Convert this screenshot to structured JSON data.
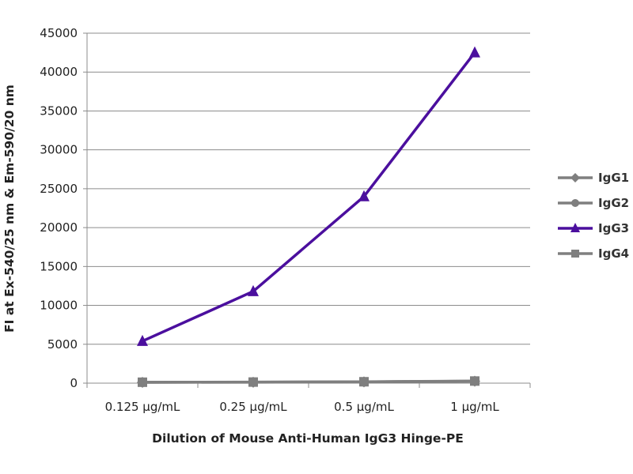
{
  "chart_data": {
    "type": "line",
    "title": "",
    "xlabel": "Dilution of Mouse Anti-Human IgG3 Hinge-PE",
    "ylabel": "FI at Ex-540/25 nm & Em-590/20 nm",
    "categories": [
      "0.125 µg/mL",
      "0.25 µg/mL",
      "0.5 µg/mL",
      "1 µg/mL"
    ],
    "ylim": [
      0,
      45000
    ],
    "yticks": [
      0,
      5000,
      10000,
      15000,
      20000,
      25000,
      30000,
      35000,
      40000,
      45000
    ],
    "grid": true,
    "legend_position": "right",
    "series": [
      {
        "name": "IgG1",
        "marker": "diamond",
        "color": "#7f7f7f",
        "values": [
          100,
          120,
          160,
          250
        ]
      },
      {
        "name": "IgG2",
        "marker": "circle",
        "color": "#7f7f7f",
        "values": [
          110,
          130,
          170,
          260
        ]
      },
      {
        "name": "IgG3",
        "marker": "triangle",
        "color": "#4b0f9e",
        "values": [
          5400,
          11800,
          24000,
          42500
        ]
      },
      {
        "name": "IgG4",
        "marker": "square",
        "color": "#7f7f7f",
        "values": [
          120,
          140,
          180,
          270
        ]
      }
    ]
  }
}
